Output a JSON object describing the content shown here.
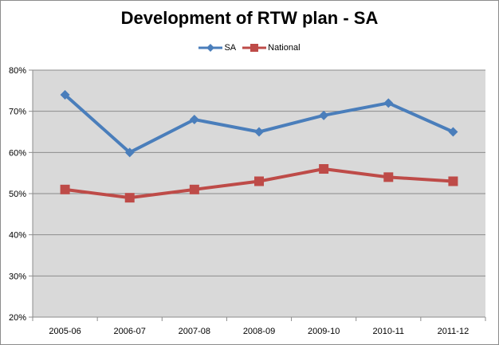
{
  "chart_data": {
    "type": "line",
    "title": "Development of RTW plan - SA",
    "xlabel": "",
    "ylabel": "",
    "categories": [
      "2005-06",
      "2006-07",
      "2007-08",
      "2008-09",
      "2009-10",
      "2010-11",
      "2011-12"
    ],
    "series": [
      {
        "name": "SA",
        "values": [
          74,
          60,
          68,
          65,
          69,
          72,
          65
        ],
        "color": "#4a7ebb",
        "marker": "diamond"
      },
      {
        "name": "National",
        "values": [
          51,
          49,
          51,
          53,
          56,
          54,
          53
        ],
        "color": "#be4b48",
        "marker": "square"
      }
    ],
    "ylim": [
      20,
      80
    ],
    "yticks": [
      20,
      30,
      40,
      50,
      60,
      70,
      80
    ],
    "ytick_labels": [
      "20%",
      "30%",
      "40%",
      "50%",
      "60%",
      "70%",
      "80%"
    ],
    "grid": true,
    "legend": "top"
  }
}
